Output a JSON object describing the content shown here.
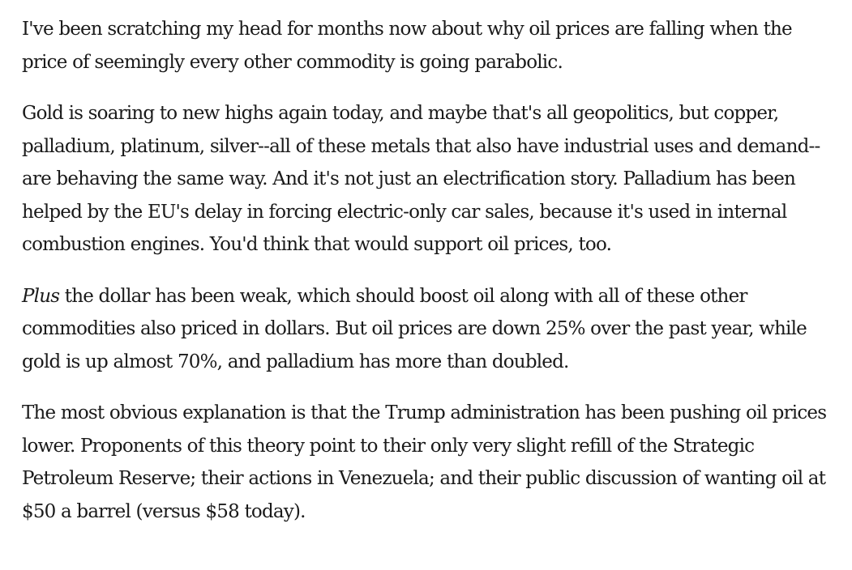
{
  "article": {
    "paragraphs": [
      {
        "text": "I've been scratching my head for months now about why oil prices are falling when the price of seemingly every other commodity is going parabolic."
      },
      {
        "text": "Gold is soaring to new highs again today, and maybe that's all geopolitics, but copper, palladium, platinum, silver--all of these metals that also have industrial uses and demand--are behaving the same way. And it's not just an electrification story. Palladium has been helped by the EU's delay in forcing electric-only car sales, because it's used in internal combustion engines. You'd think that would support oil prices, too."
      },
      {
        "lead_italic": "Plus",
        "text": " the dollar has been weak, which should boost oil along with all of these other commodities also priced in dollars. But oil prices are down 25% over the past year, while gold is up almost 70%, and palladium has more than doubled."
      },
      {
        "text": "The most obvious explanation is that the Trump administration has been pushing oil prices lower. Proponents of this theory point to their only very slight refill of the Strategic Petroleum Reserve; their actions in Venezuela; and their public discussion of wanting oil at $50 a barrel (versus $58 today)."
      }
    ]
  }
}
